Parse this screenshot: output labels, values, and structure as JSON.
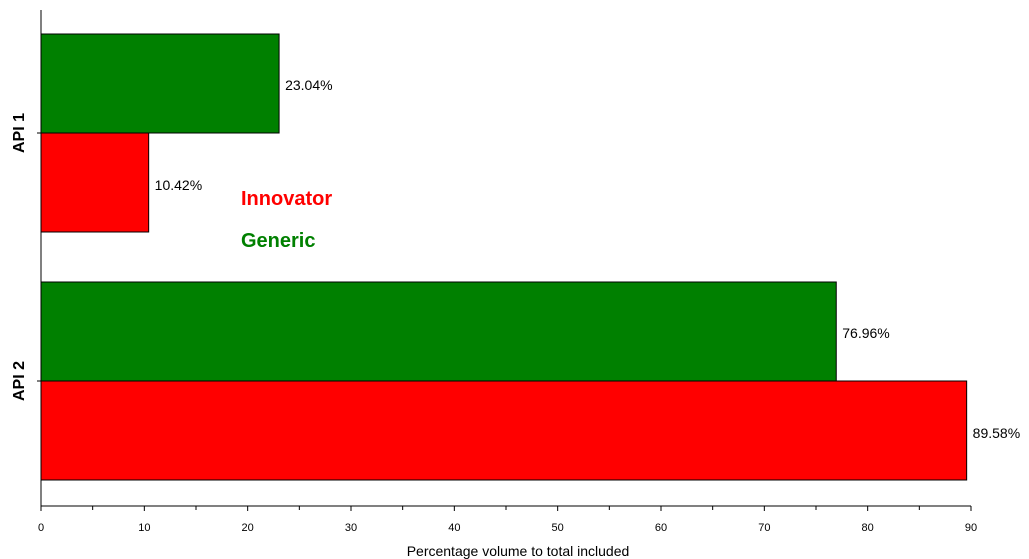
{
  "chart_data": {
    "type": "bar",
    "orientation": "horizontal",
    "categories": [
      "API 1",
      "API 2"
    ],
    "series": [
      {
        "name": "Innovator",
        "color": "#ff0000",
        "values": [
          10.42,
          89.58
        ],
        "labels": [
          "10.42%",
          "89.58%"
        ]
      },
      {
        "name": "Generic",
        "color": "#008000",
        "values": [
          23.04,
          76.96
        ],
        "labels": [
          "23.04%",
          "76.96%"
        ]
      }
    ],
    "xlabel": "Percentage volume to total included",
    "ylabel": "",
    "xlim": [
      0,
      90
    ],
    "xticks": [
      "0",
      "10",
      "20",
      "30",
      "40",
      "50",
      "60",
      "70",
      "80",
      "90"
    ],
    "grid": false,
    "legend_position": "inside-left"
  }
}
